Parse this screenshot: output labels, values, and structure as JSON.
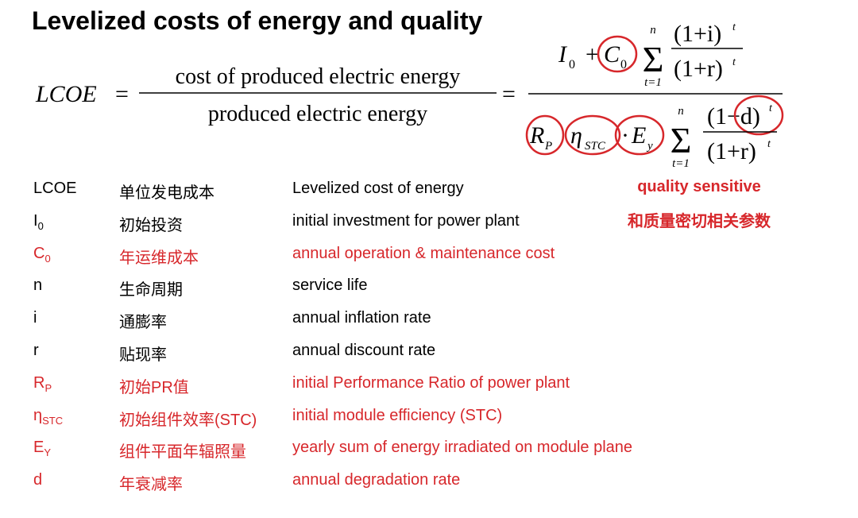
{
  "title": "Levelized costs of energy and quality",
  "formula": {
    "lhs": "LCOE",
    "eq1": "=",
    "ratio_num": "cost of produced electric energy",
    "ratio_den": "produced electric energy",
    "eq2": "=",
    "numerator": {
      "i0": "I",
      "i0_sub": "0",
      "plus": "+",
      "c0": "C",
      "c0_sub": "0",
      "sigma": "Σ",
      "sum_top": "n",
      "sum_bottom": "t=1",
      "frac_num": "(1+i)",
      "frac_num_exp": "t",
      "frac_den": "(1+r)",
      "frac_den_exp": "t"
    },
    "denominator": {
      "rp": "R",
      "rp_sub": "P",
      "eta": "η",
      "eta_sub": "STC",
      "dot": "·",
      "ey": "E",
      "ey_sub": "y",
      "sigma": "Σ",
      "sum_top": "n",
      "sum_bottom": "t=1",
      "frac_num": "(1−d)",
      "frac_num_exp": "t",
      "frac_den": "(1+r)",
      "frac_den_exp": "t"
    }
  },
  "note": {
    "en": "quality sensitive",
    "zh": "和质量密切相关参数"
  },
  "table": {
    "rows": [
      {
        "symbol": "LCOE",
        "zh": "单位发电成本",
        "en": "Levelized cost of energy",
        "color": "#000000"
      },
      {
        "symbol": "I",
        "sub": "0",
        "zh": "初始投资",
        "en": "initial investment for power plant",
        "color": "#000000"
      },
      {
        "symbol": "C",
        "sub": "0",
        "zh": "年运维成本",
        "en": "annual operation & maintenance cost",
        "color": "#d7272b"
      },
      {
        "symbol": "n",
        "zh": "生命周期",
        "en": "service life",
        "color": "#000000"
      },
      {
        "symbol": "i",
        "zh": "通膨率",
        "en": "annual inflation rate",
        "color": "#000000"
      },
      {
        "symbol": "r",
        "zh": "贴现率",
        "en": "annual discount rate",
        "color": "#000000"
      },
      {
        "symbol": "R",
        "sub": "P",
        "zh": "初始PR值",
        "en": "initial Performance Ratio of power plant",
        "color": "#d7272b"
      },
      {
        "symbol": "η",
        "sub": "STC",
        "zh": "初始组件效率(STC)",
        "en": "initial module efficiency (STC)",
        "color": "#d7272b"
      },
      {
        "symbol": "E",
        "sub": "Y",
        "zh": "组件平面年辐照量",
        "en": "yearly sum of energy irradiated on module plane",
        "color": "#d7272b"
      },
      {
        "symbol": "d",
        "zh": "年衰减率",
        "en": "annual degradation rate",
        "color": "#d7272b"
      }
    ]
  }
}
